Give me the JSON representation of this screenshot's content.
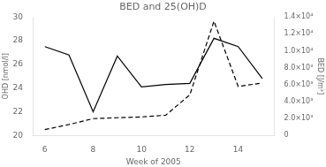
{
  "chart_data": {
    "type": "line",
    "title": "BED and 25(OH)D",
    "x_label": "Week of 2005",
    "y_label": "OHD [nmol/l]",
    "y2_label": "BED [J/m²]",
    "x": [
      6,
      7,
      8,
      9,
      10,
      11,
      12,
      13,
      14,
      15
    ],
    "series": [
      {
        "color": "#000000",
        "line_style": "solid",
        "values": [
          27.5,
          26.8,
          22.0,
          26.7,
          24.1,
          24.3,
          24.4,
          28.2,
          27.5,
          24.8
        ]
      },
      {
        "color": "#000000",
        "line_style": "dashed",
        "axis": "y2",
        "values": [
          700,
          1300,
          2000,
          2100,
          2200,
          2400,
          4800,
          13500,
          5800,
          6200
        ]
      }
    ],
    "xlim": [
      5.5,
      15.5
    ],
    "xticks": [
      6,
      8,
      10,
      12,
      14
    ],
    "ylim": [
      20,
      30
    ],
    "yticks": [
      20,
      22,
      24,
      26,
      28,
      30
    ],
    "y2lim": [
      0,
      14000
    ],
    "y2ticks": [
      0,
      {
        "value": 2000,
        "label": "2.0×10³"
      },
      {
        "value": 4000,
        "label": "4.0×10³"
      },
      {
        "value": 6000,
        "label": "6.0×10³"
      },
      {
        "value": 8000,
        "label": "8.0×10³"
      },
      {
        "value": 10000,
        "label": "1.0×10⁴"
      },
      {
        "value": 12000,
        "label": "1.2×10⁴"
      },
      {
        "value": 14000,
        "label": "1.4×10⁴"
      }
    ],
    "grid": false
  }
}
